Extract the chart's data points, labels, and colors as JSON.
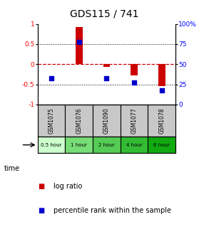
{
  "title": "GDS115 / 741",
  "samples": [
    "GSM1075",
    "GSM1076",
    "GSM1090",
    "GSM1077",
    "GSM1078"
  ],
  "time_labels": [
    "0.5 hour",
    "1 hour",
    "2 hour",
    "4 hour",
    "6 hour"
  ],
  "time_colors": [
    "#ccffcc",
    "#77dd77",
    "#55cc55",
    "#33bb33",
    "#11aa11"
  ],
  "log_ratios": [
    0.0,
    0.93,
    -0.07,
    -0.28,
    -0.55
  ],
  "percentile_ranks": [
    33,
    78,
    33,
    27,
    18
  ],
  "bar_color": "#cc0000",
  "dot_color": "#0000cc",
  "ylim_left": [
    -1,
    1
  ],
  "ylim_right": [
    0,
    100
  ],
  "yticks_left": [
    -1,
    -0.5,
    0,
    0.5,
    1
  ],
  "ytick_labels_left": [
    "-1",
    "-0.5",
    "0",
    "0.5",
    "1"
  ],
  "yticks_right": [
    0,
    25,
    50,
    75,
    100
  ],
  "ytick_labels_right": [
    "0",
    "25",
    "50",
    "75",
    "100%"
  ],
  "zero_line_color": "#cc0000",
  "grid_color": "#000000",
  "background_color": "#ffffff",
  "bar_width": 0.25
}
